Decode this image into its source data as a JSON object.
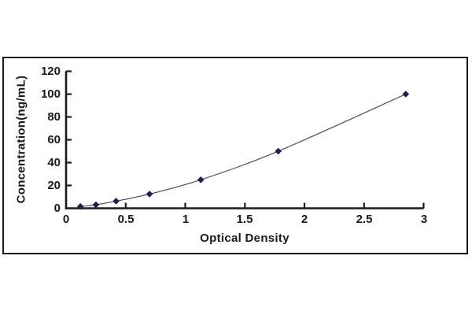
{
  "chart_data": {
    "type": "line",
    "title": "",
    "xlabel": "Optical Density",
    "ylabel": "Concentration(ng/mL)",
    "x": [
      0.12,
      0.25,
      0.42,
      0.7,
      1.13,
      1.78,
      2.85
    ],
    "y": [
      1.56,
      3.12,
      6.25,
      12.5,
      25,
      50,
      100
    ],
    "xlim": [
      0,
      3
    ],
    "ylim": [
      0,
      120
    ],
    "x_tick_values": [
      0,
      0.5,
      1,
      1.5,
      2,
      2.5,
      3
    ],
    "x_tick_labels": [
      "0",
      "0.5",
      "1",
      "1.5",
      "2",
      "2.5",
      "3"
    ],
    "y_tick_values": [
      0,
      20,
      40,
      60,
      80,
      100,
      120
    ],
    "y_tick_labels": [
      "0",
      "20",
      "40",
      "60",
      "80",
      "100",
      "120"
    ],
    "marker": "diamond",
    "grid": false,
    "legend": "none",
    "colors": {
      "marker": "#1d1d4e",
      "line": "#5a5a6e",
      "axis": "#1a1a1a",
      "text": "#1a1a1a",
      "frame": "#1a1a1a",
      "background": "#ffffff"
    }
  }
}
